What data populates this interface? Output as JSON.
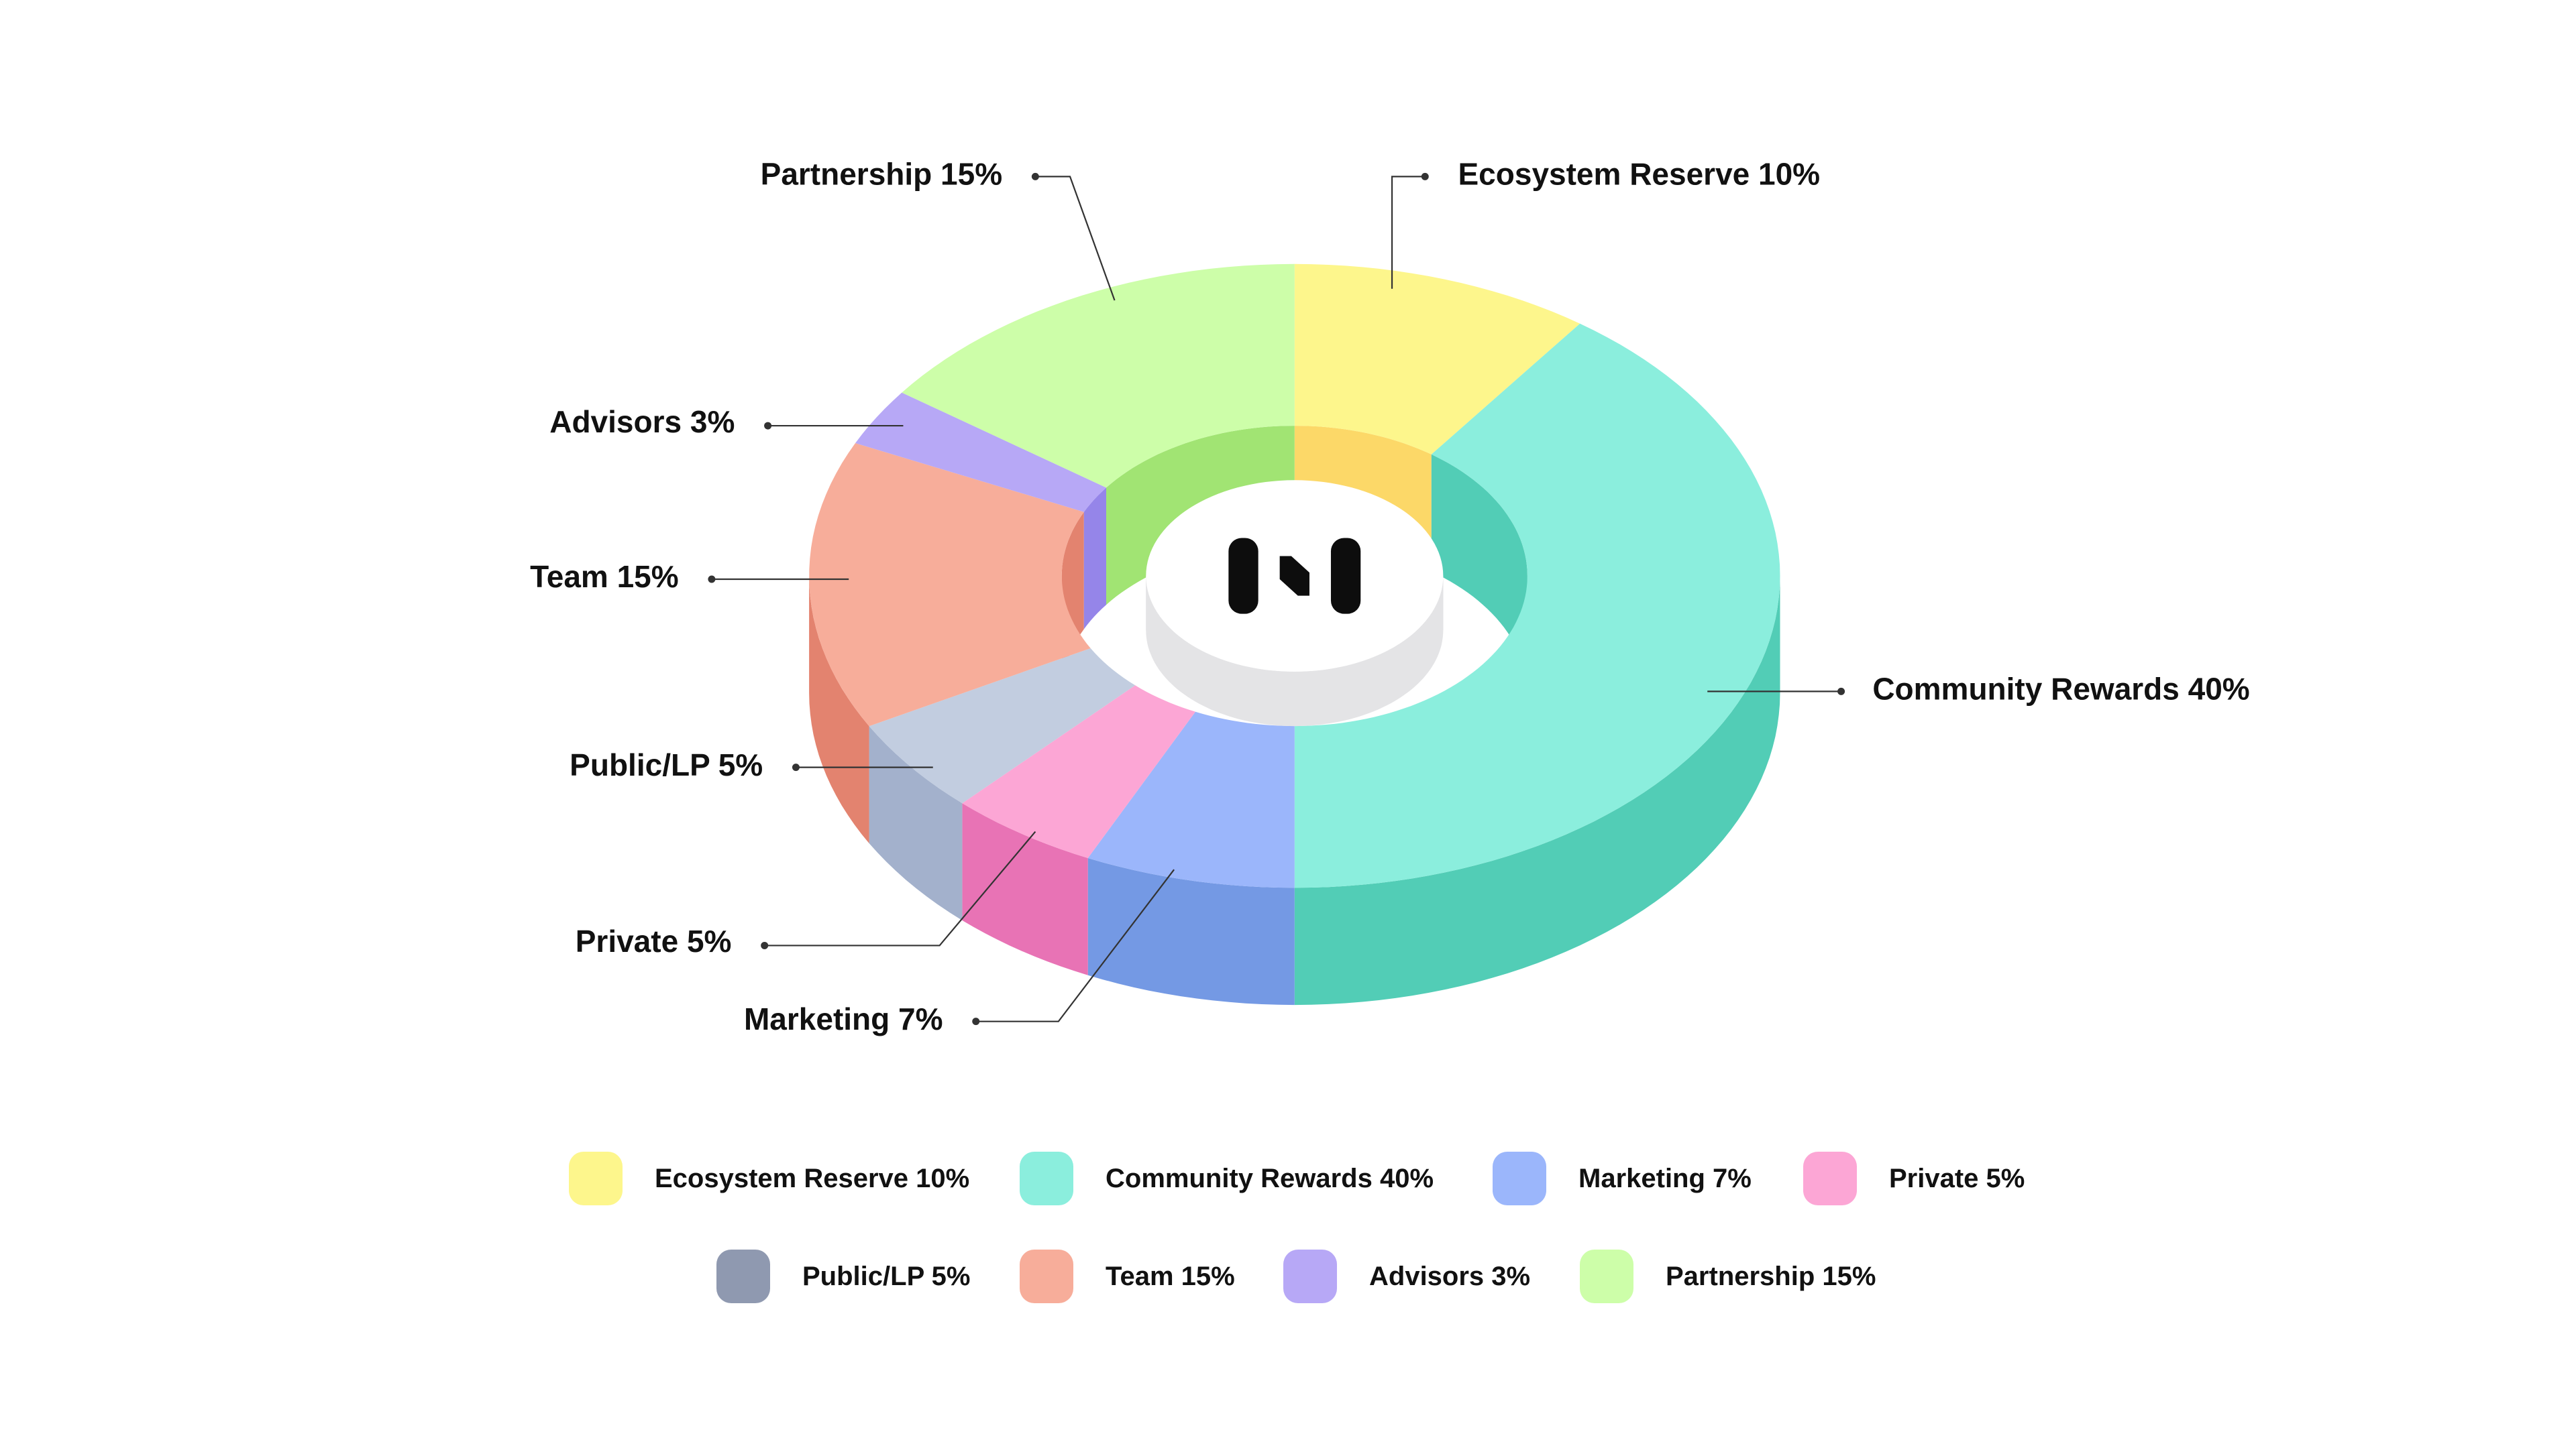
{
  "chart_data": {
    "type": "pie",
    "variant": "3d-donut",
    "title": "",
    "categories": [
      "Ecosystem Reserve",
      "Community Rewards",
      "Marketing",
      "Private",
      "Public/LP",
      "Team",
      "Advisors",
      "Partnership"
    ],
    "values": [
      10,
      40,
      7,
      5,
      5,
      15,
      3,
      15
    ],
    "unit": "%",
    "colors": {
      "top": [
        "#fdf68c",
        "#8beedd",
        "#9bb6fb",
        "#fca6d5",
        "#c2cde0",
        "#f7ad9a",
        "#b7a8f6",
        "#cdfea9"
      ],
      "side": [
        "#fcd868",
        "#52cdb6",
        "#7499e4",
        "#e873b5",
        "#a3b1cc",
        "#e3836f",
        "#9585e9",
        "#a1e473"
      ],
      "legend": [
        "#fdf68c",
        "#8beedd",
        "#9bb6fb",
        "#fca6d5",
        "#8f99b0",
        "#f7ad9a",
        "#b7a8f6",
        "#cdfea9"
      ]
    },
    "callout_labels": [
      "Ecosystem Reserve 10%",
      "Community Rewards 40%",
      "Marketing 7%",
      "Private 5%",
      "Public/LP 5%",
      "Team 15%",
      "Advisors 3%",
      "Partnership 15%"
    ],
    "legend": {
      "rows": [
        [
          "Ecosystem Reserve 10%",
          "Community Rewards 40%",
          "Marketing 7%",
          "Private 5%"
        ],
        [
          "Public/LP 5%",
          "Team 15%",
          "Advisors 3%",
          "Partnership 15%"
        ]
      ],
      "placement": "bottom"
    },
    "center_logo": "brand-logo"
  }
}
